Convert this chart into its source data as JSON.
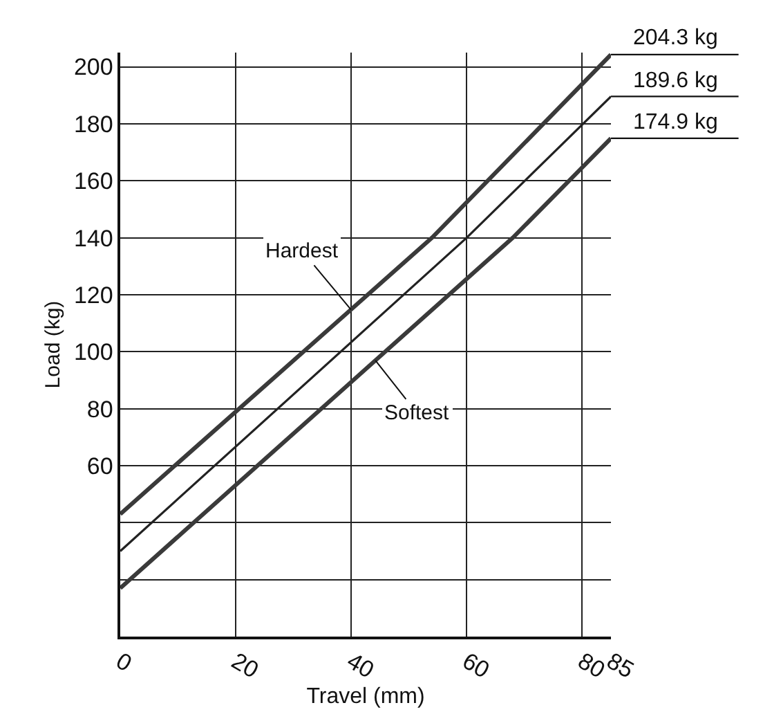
{
  "chart_data": {
    "type": "line",
    "xlabel": "Travel (mm)",
    "ylabel": "Load (kg)",
    "xlim": [
      0,
      85
    ],
    "ylim": [
      0,
      205
    ],
    "xticks": [
      0,
      20,
      40,
      60,
      80,
      85
    ],
    "yticks": [
      {
        "value": 0,
        "label": null
      },
      {
        "value": 20,
        "label": null
      },
      {
        "value": 40,
        "label": null
      },
      60,
      80,
      100,
      120,
      140,
      160,
      180,
      200
    ],
    "grid": true,
    "legend": false,
    "marker": "none",
    "line_style": "solid",
    "series": [
      {
        "name": "Hardest",
        "color": "#3a3a3a",
        "x": [
          0,
          54,
          85
        ],
        "values": [
          43,
          140,
          204.3
        ],
        "value_labels": [
          null,
          null,
          "204.3 kg"
        ]
      },
      {
        "color": "#222222",
        "x": [
          0,
          60,
          85
        ],
        "values": [
          30,
          140,
          189.6
        ],
        "value_labels": [
          null,
          null,
          "189.6 kg"
        ]
      },
      {
        "name": "Softest",
        "color": "#3a3a3a",
        "x": [
          0,
          68,
          85
        ],
        "values": [
          17,
          140,
          174.9
        ],
        "value_labels": [
          null,
          null,
          "174.9 kg"
        ]
      }
    ]
  }
}
